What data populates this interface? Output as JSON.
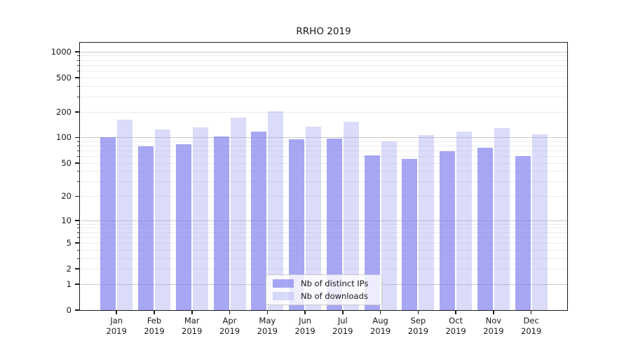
{
  "chart_data": {
    "type": "bar",
    "title": "RRHO 2019",
    "categories": [
      "Jan",
      "Feb",
      "Mar",
      "Apr",
      "May",
      "Jun",
      "Jul",
      "Aug",
      "Sep",
      "Oct",
      "Nov",
      "Dec"
    ],
    "year_label": "2019",
    "series": [
      {
        "name": "Nb of distinct IPs",
        "fill": "rgba(130,130,240,0.70)",
        "color_on_white": "#a7a7f5",
        "values": [
          100,
          79,
          83,
          103,
          118,
          95,
          97,
          61,
          56,
          69,
          75,
          60
        ]
      },
      {
        "name": "Nb of downloads",
        "fill": "rgba(160,160,242,0.38)",
        "color_on_white": "#dbdbf8",
        "values": [
          160,
          124,
          130,
          170,
          202,
          134,
          153,
          89,
          106,
          118,
          129,
          108
        ]
      }
    ],
    "yscale": "log1p",
    "yticks": [
      0,
      1,
      2,
      5,
      10,
      20,
      50,
      100,
      200,
      500,
      1000
    ],
    "ylim": [
      0,
      1260
    ],
    "grid": "major-and-minor",
    "legend_position": "lower center",
    "colors": {
      "major_gridline": "#c9c9c9",
      "minor_gridline": "#ececec",
      "axis": "#1c1c1c",
      "legend_border": "#cccccc"
    }
  }
}
